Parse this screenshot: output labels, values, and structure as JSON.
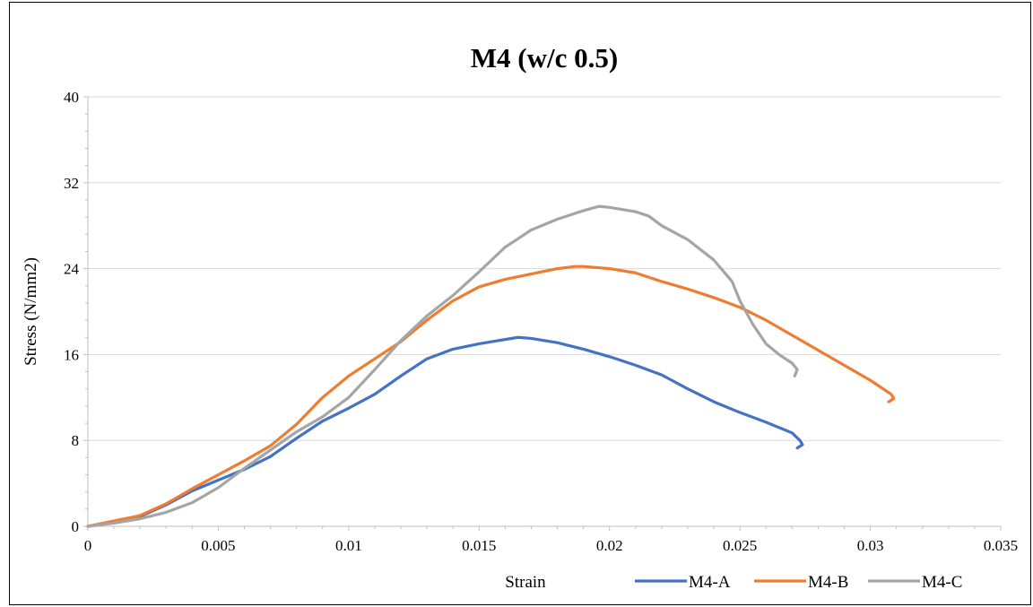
{
  "chart_data": {
    "type": "line",
    "title": "M4 (w/c 0.5)",
    "xlabel": "Strain",
    "ylabel": "Stress (N/mm2)",
    "xlim": [
      0,
      0.035
    ],
    "ylim": [
      0,
      40
    ],
    "x_ticks": [
      0,
      0.005,
      0.01,
      0.015,
      0.02,
      0.025,
      0.03,
      0.035
    ],
    "x_tick_labels": [
      "0",
      "0.005",
      "0.01",
      "0.015",
      "0.02",
      "0.025",
      "0.03",
      "0.035"
    ],
    "y_ticks": [
      0,
      8,
      16,
      24,
      32,
      40
    ],
    "y_tick_labels": [
      "0",
      "8",
      "16",
      "24",
      "32",
      "40"
    ],
    "grid": "horizontal",
    "legend_position": "bottom",
    "series": [
      {
        "name": "M4-A",
        "color": "#4472C4",
        "points": [
          [
            0,
            0
          ],
          [
            0.001,
            0.4
          ],
          [
            0.002,
            0.9
          ],
          [
            0.003,
            2.0
          ],
          [
            0.004,
            3.3
          ],
          [
            0.005,
            4.3
          ],
          [
            0.006,
            5.3
          ],
          [
            0.007,
            6.5
          ],
          [
            0.008,
            8.2
          ],
          [
            0.009,
            9.8
          ],
          [
            0.01,
            11.0
          ],
          [
            0.011,
            12.3
          ],
          [
            0.012,
            14.0
          ],
          [
            0.013,
            15.6
          ],
          [
            0.014,
            16.5
          ],
          [
            0.015,
            17.0
          ],
          [
            0.016,
            17.4
          ],
          [
            0.0165,
            17.6
          ],
          [
            0.017,
            17.5
          ],
          [
            0.018,
            17.1
          ],
          [
            0.019,
            16.5
          ],
          [
            0.02,
            15.8
          ],
          [
            0.021,
            15.0
          ],
          [
            0.022,
            14.1
          ],
          [
            0.023,
            12.8
          ],
          [
            0.024,
            11.6
          ],
          [
            0.025,
            10.6
          ],
          [
            0.026,
            9.7
          ],
          [
            0.027,
            8.7
          ],
          [
            0.0273,
            8.0
          ],
          [
            0.0274,
            7.6
          ],
          [
            0.0272,
            7.3
          ]
        ]
      },
      {
        "name": "M4-B",
        "color": "#ED7D31",
        "points": [
          [
            0,
            0
          ],
          [
            0.001,
            0.5
          ],
          [
            0.002,
            1.0
          ],
          [
            0.003,
            2.1
          ],
          [
            0.004,
            3.5
          ],
          [
            0.005,
            4.8
          ],
          [
            0.006,
            6.1
          ],
          [
            0.007,
            7.5
          ],
          [
            0.008,
            9.5
          ],
          [
            0.009,
            12.0
          ],
          [
            0.01,
            14.0
          ],
          [
            0.011,
            15.6
          ],
          [
            0.012,
            17.2
          ],
          [
            0.013,
            19.2
          ],
          [
            0.014,
            21.0
          ],
          [
            0.015,
            22.3
          ],
          [
            0.016,
            23.0
          ],
          [
            0.017,
            23.5
          ],
          [
            0.018,
            24.0
          ],
          [
            0.0187,
            24.2
          ],
          [
            0.019,
            24.2
          ],
          [
            0.02,
            24.0
          ],
          [
            0.021,
            23.6
          ],
          [
            0.022,
            22.8
          ],
          [
            0.023,
            22.1
          ],
          [
            0.024,
            21.3
          ],
          [
            0.025,
            20.4
          ],
          [
            0.026,
            19.2
          ],
          [
            0.027,
            17.8
          ],
          [
            0.028,
            16.4
          ],
          [
            0.029,
            15.0
          ],
          [
            0.03,
            13.6
          ],
          [
            0.0308,
            12.3
          ],
          [
            0.0309,
            11.9
          ],
          [
            0.0307,
            11.6
          ]
        ]
      },
      {
        "name": "M4-C",
        "color": "#A5A5A5",
        "points": [
          [
            0,
            0
          ],
          [
            0.001,
            0.3
          ],
          [
            0.002,
            0.7
          ],
          [
            0.003,
            1.3
          ],
          [
            0.004,
            2.2
          ],
          [
            0.005,
            3.6
          ],
          [
            0.006,
            5.4
          ],
          [
            0.007,
            7.1
          ],
          [
            0.008,
            8.8
          ],
          [
            0.009,
            10.2
          ],
          [
            0.01,
            12.0
          ],
          [
            0.011,
            14.6
          ],
          [
            0.012,
            17.3
          ],
          [
            0.013,
            19.6
          ],
          [
            0.014,
            21.5
          ],
          [
            0.015,
            23.7
          ],
          [
            0.016,
            26.0
          ],
          [
            0.017,
            27.6
          ],
          [
            0.018,
            28.6
          ],
          [
            0.019,
            29.4
          ],
          [
            0.0196,
            29.8
          ],
          [
            0.02,
            29.7
          ],
          [
            0.021,
            29.3
          ],
          [
            0.0215,
            28.9
          ],
          [
            0.022,
            28.0
          ],
          [
            0.023,
            26.7
          ],
          [
            0.024,
            24.8
          ],
          [
            0.0247,
            22.8
          ],
          [
            0.025,
            21.0
          ],
          [
            0.0255,
            18.8
          ],
          [
            0.026,
            17.0
          ],
          [
            0.0265,
            16.0
          ],
          [
            0.027,
            15.2
          ],
          [
            0.0272,
            14.6
          ],
          [
            0.0271,
            14.0
          ]
        ]
      }
    ]
  }
}
